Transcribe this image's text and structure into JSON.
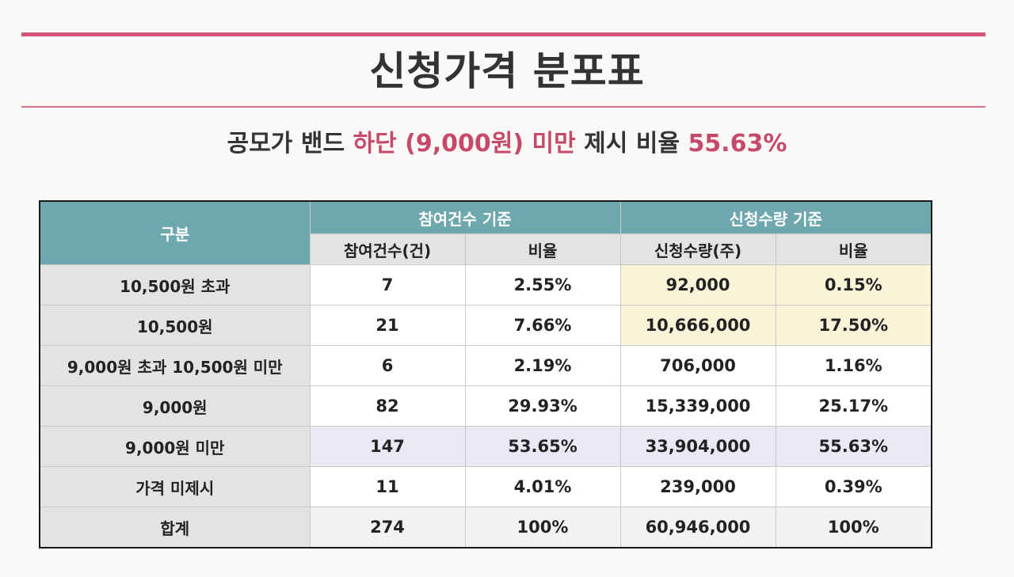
{
  "title": "신청가격 분포표",
  "subtitle": {
    "part1": "공모가 밴드 ",
    "hl1": "하단 (9,000원) 미만",
    "part2": " 제시 비율 ",
    "hl2": "55.63%"
  },
  "table": {
    "col_group": "구분",
    "group1": "참여건수 기준",
    "group2": "신청수량 기준",
    "sub_headers": [
      "참여건수(건)",
      "비율",
      "신청수량(주)",
      "비율"
    ],
    "rows": [
      {
        "label": "10,500원 초과",
        "count": "7",
        "count_ratio": "2.55%",
        "qty": "92,000",
        "qty_ratio": "0.15%"
      },
      {
        "label": "10,500원",
        "count": "21",
        "count_ratio": "7.66%",
        "qty": "10,666,000",
        "qty_ratio": "17.50%"
      },
      {
        "label": "9,000원 초과 10,500원 미만",
        "count": "6",
        "count_ratio": "2.19%",
        "qty": "706,000",
        "qty_ratio": "1.16%"
      },
      {
        "label": "9,000원",
        "count": "82",
        "count_ratio": "29.93%",
        "qty": "15,339,000",
        "qty_ratio": "25.17%"
      },
      {
        "label": "9,000원 미만",
        "count": "147",
        "count_ratio": "53.65%",
        "qty": "33,904,000",
        "qty_ratio": "55.63%"
      },
      {
        "label": "가격 미제시",
        "count": "11",
        "count_ratio": "4.01%",
        "qty": "239,000",
        "qty_ratio": "0.39%"
      },
      {
        "label": "합계",
        "count": "274",
        "count_ratio": "100%",
        "qty": "60,946,000",
        "qty_ratio": "100%"
      }
    ]
  },
  "colors": {
    "accent": "#d4547a",
    "header_teal": "#6ea7ad",
    "highlight_yellow": "#fbf3d8",
    "highlight_lavender": "#ebe8f5"
  }
}
